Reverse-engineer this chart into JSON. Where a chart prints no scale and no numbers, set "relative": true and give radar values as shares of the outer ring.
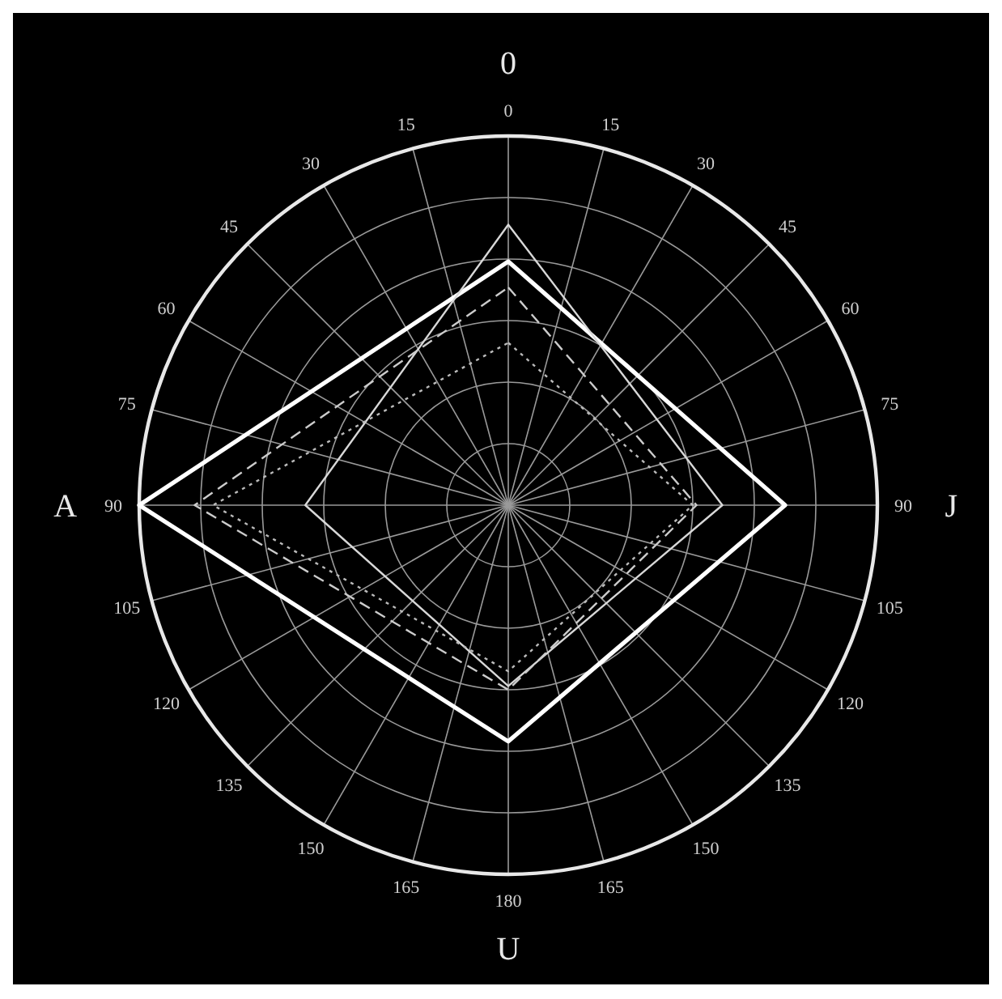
{
  "chart_data": {
    "type": "radar",
    "relative": true,
    "grid": true,
    "categories": [
      "0",
      "J",
      "U",
      "A"
    ],
    "annotations": [
      "0",
      "15",
      "30",
      "45",
      "60",
      "75",
      "90",
      "105",
      "120",
      "135",
      "150",
      "165",
      "180",
      "165",
      "150",
      "135",
      "120",
      "105",
      "90",
      "75",
      "60",
      "45",
      "30",
      "15"
    ],
    "series": [
      {
        "color": "#ffffff",
        "line_style": "solid",
        "values": [
          0.66,
          0.75,
          0.64,
          1.0
        ]
      },
      {
        "color": "#d8d8d8",
        "line_style": "solid",
        "values": [
          0.76,
          0.58,
          0.49,
          0.55
        ]
      },
      {
        "color": "#cccccc",
        "line_style": "dashed",
        "values": [
          0.59,
          0.51,
          0.5,
          0.85
        ]
      },
      {
        "color": "#bbbbbb",
        "line_style": "dotted",
        "values": [
          0.44,
          0.5,
          0.45,
          0.8
        ]
      }
    ]
  }
}
